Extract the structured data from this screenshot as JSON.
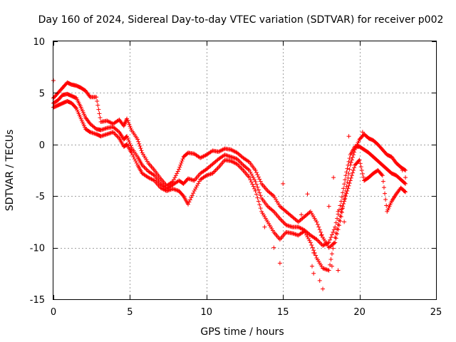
{
  "chart_data": {
    "type": "scatter",
    "title": "Day 160 of 2024, Sidereal Day-to-day VTEC variation (SDTVAR) for receiver p002",
    "xlabel": "GPS time / hours",
    "ylabel": "SDTVAR / TECUs",
    "xlim": [
      0,
      25
    ],
    "ylim": [
      -15,
      10
    ],
    "xticks": [
      0,
      5,
      10,
      15,
      20,
      25
    ],
    "yticks": [
      -15,
      -10,
      -5,
      0,
      5,
      10
    ],
    "xtick_labels": [
      "0",
      "5",
      "10",
      "15",
      "20",
      "25"
    ],
    "ytick_labels": [
      "-15",
      "-10",
      "-5",
      "0",
      "5",
      "10"
    ],
    "grid": true,
    "marker": "+",
    "marker_color": "#ff0000",
    "series": [
      {
        "points": [
          [
            0.0,
            4.5
          ],
          [
            0.3,
            5.0
          ],
          [
            0.6,
            5.5
          ],
          [
            0.9,
            6.0
          ],
          [
            1.2,
            5.8
          ],
          [
            1.5,
            5.7
          ],
          [
            1.8,
            5.5
          ],
          [
            2.1,
            5.2
          ],
          [
            2.4,
            4.6
          ],
          [
            2.8,
            4.6
          ],
          [
            3.1,
            2.2
          ],
          [
            3.5,
            2.3
          ],
          [
            3.9,
            2.0
          ],
          [
            4.3,
            2.4
          ],
          [
            4.6,
            1.8
          ],
          [
            4.8,
            2.5
          ],
          [
            5.1,
            1.4
          ],
          [
            5.5,
            0.5
          ],
          [
            5.8,
            -0.8
          ],
          [
            6.2,
            -1.8
          ],
          [
            6.6,
            -2.5
          ],
          [
            7.0,
            -3.3
          ],
          [
            7.4,
            -4.0
          ],
          [
            7.8,
            -3.6
          ],
          [
            8.2,
            -2.4
          ],
          [
            8.5,
            -1.2
          ],
          [
            8.8,
            -0.8
          ],
          [
            9.2,
            -0.9
          ],
          [
            9.6,
            -1.3
          ],
          [
            10.0,
            -1.0
          ],
          [
            10.4,
            -0.6
          ],
          [
            10.8,
            -0.7
          ],
          [
            11.2,
            -0.4
          ],
          [
            11.6,
            -0.5
          ],
          [
            12.0,
            -0.8
          ],
          [
            12.4,
            -1.3
          ],
          [
            12.8,
            -1.7
          ],
          [
            13.2,
            -2.5
          ],
          [
            13.6,
            -3.8
          ],
          [
            14.0,
            -4.5
          ],
          [
            14.4,
            -5.0
          ],
          [
            14.8,
            -6.0
          ],
          [
            15.2,
            -6.5
          ],
          [
            15.6,
            -7.0
          ],
          [
            16.0,
            -7.5
          ],
          [
            16.4,
            -7.0
          ],
          [
            16.8,
            -6.5
          ],
          [
            17.2,
            -7.5
          ],
          [
            17.6,
            -9.0
          ],
          [
            18.0,
            -10.0
          ],
          [
            18.4,
            -9.5
          ],
          [
            18.8,
            -7.0
          ],
          [
            19.1,
            -4.5
          ],
          [
            19.4,
            -2.0
          ],
          [
            19.7,
            -0.5
          ],
          [
            20.0,
            0.5
          ],
          [
            20.3,
            1.0
          ],
          [
            20.6,
            0.6
          ],
          [
            20.9,
            0.4
          ],
          [
            21.2,
            0.0
          ],
          [
            21.5,
            -0.5
          ],
          [
            21.8,
            -1.0
          ],
          [
            22.1,
            -1.2
          ],
          [
            22.4,
            -1.8
          ],
          [
            22.7,
            -2.2
          ],
          [
            23.0,
            -2.5
          ]
        ]
      },
      {
        "points": [
          [
            0.0,
            4.0
          ],
          [
            0.3,
            4.3
          ],
          [
            0.6,
            4.8
          ],
          [
            0.9,
            4.9
          ],
          [
            1.2,
            4.7
          ],
          [
            1.5,
            4.5
          ],
          [
            1.8,
            3.6
          ],
          [
            2.1,
            2.6
          ],
          [
            2.4,
            2.0
          ],
          [
            2.8,
            1.5
          ],
          [
            3.1,
            1.4
          ],
          [
            3.5,
            1.6
          ],
          [
            3.9,
            1.7
          ],
          [
            4.3,
            1.2
          ],
          [
            4.6,
            0.5
          ],
          [
            4.8,
            0.8
          ],
          [
            5.1,
            -0.3
          ],
          [
            5.5,
            -1.2
          ],
          [
            5.8,
            -2.0
          ],
          [
            6.2,
            -2.6
          ],
          [
            6.6,
            -3.0
          ],
          [
            7.0,
            -3.8
          ],
          [
            7.4,
            -4.3
          ],
          [
            7.8,
            -3.9
          ],
          [
            8.2,
            -3.5
          ],
          [
            8.5,
            -3.8
          ],
          [
            8.8,
            -3.3
          ],
          [
            9.2,
            -3.5
          ],
          [
            9.6,
            -2.8
          ],
          [
            10.0,
            -2.4
          ],
          [
            10.4,
            -1.9
          ],
          [
            10.8,
            -1.4
          ],
          [
            11.2,
            -1.0
          ],
          [
            11.6,
            -1.2
          ],
          [
            12.0,
            -1.4
          ],
          [
            12.4,
            -2.0
          ],
          [
            12.8,
            -2.5
          ],
          [
            13.2,
            -3.6
          ],
          [
            13.6,
            -5.2
          ],
          [
            14.0,
            -6.0
          ],
          [
            14.4,
            -6.5
          ],
          [
            14.8,
            -7.2
          ],
          [
            15.2,
            -7.8
          ],
          [
            15.6,
            -8.0
          ],
          [
            16.0,
            -8.0
          ],
          [
            16.4,
            -8.3
          ],
          [
            16.8,
            -8.8
          ],
          [
            17.2,
            -9.2
          ],
          [
            17.6,
            -9.8
          ],
          [
            18.0,
            -9.5
          ],
          [
            18.4,
            -8.0
          ],
          [
            18.8,
            -5.5
          ],
          [
            19.1,
            -3.0
          ],
          [
            19.4,
            -1.0
          ],
          [
            19.7,
            -0.2
          ],
          [
            20.0,
            -0.2
          ],
          [
            20.3,
            -0.5
          ],
          [
            20.6,
            -0.8
          ],
          [
            20.9,
            -1.2
          ],
          [
            21.2,
            -1.6
          ],
          [
            21.5,
            -2.0
          ],
          [
            21.8,
            -2.4
          ],
          [
            22.1,
            -2.8
          ],
          [
            22.4,
            -3.0
          ],
          [
            22.7,
            -3.4
          ],
          [
            23.0,
            -3.8
          ]
        ]
      },
      {
        "points": [
          [
            0.0,
            3.6
          ],
          [
            0.3,
            3.8
          ],
          [
            0.6,
            4.0
          ],
          [
            0.9,
            4.2
          ],
          [
            1.2,
            4.0
          ],
          [
            1.5,
            3.5
          ],
          [
            1.8,
            2.5
          ],
          [
            2.1,
            1.5
          ],
          [
            2.4,
            1.2
          ],
          [
            2.8,
            1.0
          ],
          [
            3.1,
            0.8
          ],
          [
            3.5,
            1.0
          ],
          [
            3.9,
            1.2
          ],
          [
            4.3,
            0.6
          ],
          [
            4.6,
            -0.2
          ],
          [
            4.8,
            0.0
          ],
          [
            5.1,
            -0.8
          ],
          [
            5.5,
            -2.0
          ],
          [
            5.8,
            -2.8
          ],
          [
            6.2,
            -3.2
          ],
          [
            6.6,
            -3.5
          ],
          [
            7.0,
            -4.2
          ],
          [
            7.4,
            -4.5
          ],
          [
            7.8,
            -4.3
          ],
          [
            8.2,
            -4.5
          ],
          [
            8.5,
            -5.0
          ],
          [
            8.8,
            -5.8
          ],
          [
            9.2,
            -4.5
          ],
          [
            9.6,
            -3.4
          ],
          [
            10.0,
            -3.0
          ],
          [
            10.4,
            -2.8
          ],
          [
            10.8,
            -2.2
          ],
          [
            11.2,
            -1.5
          ],
          [
            11.6,
            -1.6
          ],
          [
            12.0,
            -1.9
          ],
          [
            12.4,
            -2.5
          ],
          [
            12.8,
            -3.2
          ],
          [
            13.2,
            -4.5
          ],
          [
            13.6,
            -6.5
          ],
          [
            14.0,
            -7.5
          ],
          [
            14.4,
            -8.5
          ],
          [
            14.8,
            -9.2
          ],
          [
            15.2,
            -8.5
          ],
          [
            15.6,
            -8.6
          ],
          [
            16.0,
            -8.8
          ],
          [
            16.4,
            -8.4
          ],
          [
            16.8,
            -9.5
          ],
          [
            17.2,
            -11.0
          ],
          [
            17.6,
            -12.0
          ],
          [
            18.0,
            -12.2
          ],
          [
            18.4,
            -9.0
          ],
          [
            18.8,
            -6.5
          ],
          [
            19.1,
            -5.0
          ],
          [
            19.4,
            -3.5
          ],
          [
            19.7,
            -2.0
          ],
          [
            20.0,
            -1.5
          ],
          [
            20.3,
            -3.5
          ],
          [
            20.6,
            -3.2
          ],
          [
            20.9,
            -2.8
          ],
          [
            21.2,
            -2.5
          ],
          [
            21.5,
            -3.0
          ],
          [
            21.8,
            -6.5
          ],
          [
            22.1,
            -5.5
          ],
          [
            22.4,
            -4.8
          ],
          [
            22.7,
            -4.2
          ],
          [
            23.0,
            -4.6
          ]
        ]
      },
      {
        "points": [
          [
            0.0,
            6.2
          ],
          [
            13.8,
            -8.0
          ],
          [
            14.4,
            -10.0
          ],
          [
            14.8,
            -11.5
          ],
          [
            15.0,
            -3.8
          ],
          [
            16.6,
            -4.8
          ],
          [
            16.2,
            -6.8
          ],
          [
            17.0,
            -12.5
          ],
          [
            17.4,
            -13.2
          ],
          [
            17.6,
            -14.0
          ],
          [
            18.2,
            -11.8
          ],
          [
            18.6,
            -12.2
          ],
          [
            17.0,
            -10.5
          ],
          [
            16.9,
            -11.8
          ],
          [
            18.0,
            -6.0
          ],
          [
            18.3,
            -3.2
          ],
          [
            18.6,
            -6.5
          ],
          [
            19.0,
            -7.5
          ],
          [
            22.9,
            -4.5
          ],
          [
            23.0,
            -3.2
          ],
          [
            22.8,
            -2.5
          ],
          [
            19.3,
            0.8
          ],
          [
            20.2,
            1.2
          ],
          [
            17.5,
            -8.8
          ]
        ]
      }
    ]
  }
}
